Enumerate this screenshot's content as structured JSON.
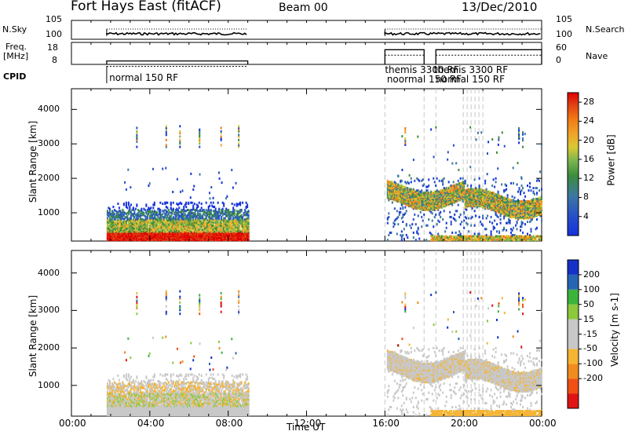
{
  "header": {
    "station": "Fort Hays East (fitACF)",
    "beam": "Beam 00",
    "date": "13/Dec/2010"
  },
  "strip_labels": {
    "nsky": "N.Sky",
    "freq_line1": "Freq.",
    "freq_line2": "[MHz]",
    "cpid": "CPID",
    "nsearch": "N.Search",
    "nave": "Nave"
  },
  "chart_data": [
    {
      "type": "line",
      "name_left": "N.Sky",
      "name_right": "N.Search",
      "yticks": [
        "10^5",
        "10^0"
      ],
      "x_range_hours": [
        0,
        24
      ],
      "segments_hours": [
        [
          1.8,
          9.0
        ],
        [
          16.0,
          24.0
        ]
      ]
    },
    {
      "type": "line",
      "ylabel": "Freq. [MHz]",
      "yticks_left": [
        8,
        18
      ],
      "yticks_right": [
        0,
        60
      ],
      "right_label": "Nave",
      "freq_segments": [
        {
          "x": [
            1.8,
            9.0
          ],
          "mhz": 10
        },
        {
          "x": [
            16.0,
            18.0
          ],
          "mhz": 16.5
        },
        {
          "x": [
            18.6,
            24.0
          ],
          "mhz": 16.5
        }
      ]
    },
    {
      "type": "annotation",
      "name": "CPID",
      "programs": [
        {
          "x": 1.85,
          "text": "normal 150 RF"
        },
        {
          "x": 16.0,
          "text": "themis 3300 RF"
        },
        {
          "x": 16.1,
          "text": "noormal 150 RF"
        },
        {
          "x": 18.5,
          "text": "themis 3300 RF"
        },
        {
          "x": 18.6,
          "text": "normal 150 RF"
        }
      ],
      "boundaries_hours": [
        1.8,
        16.0,
        18.0,
        18.6,
        20.0,
        20.2,
        20.4,
        20.6,
        20.8,
        21.0
      ]
    },
    {
      "type": "heatmap",
      "quantity": "Power",
      "ylabel": "Slant Range [km]",
      "yticks": [
        1000,
        2000,
        3000,
        4000
      ],
      "ylim": [
        180,
        4600
      ],
      "xlim_hours": [
        0,
        24
      ],
      "colorbar_label": "Power [dB]",
      "colorbar_ticks": [
        4,
        8,
        12,
        16,
        20,
        24,
        28
      ],
      "colorbar_range": [
        0,
        30
      ]
    },
    {
      "type": "heatmap",
      "quantity": "Velocity",
      "ylabel": "Slant Range [km]",
      "yticks": [
        1000,
        2000,
        3000,
        4000
      ],
      "ylim": [
        180,
        4600
      ],
      "xlabel": "Time UT",
      "xticks": [
        "00:00",
        "04:00",
        "08:00",
        "12:00",
        "16:00",
        "20:00",
        "00:00"
      ],
      "xtick_hours": [
        0,
        4,
        8,
        12,
        16,
        20,
        24
      ],
      "colorbar_label": "Velocity [m s-1]",
      "colorbar_ticks": [
        200,
        100,
        50,
        15,
        -15,
        -50,
        -100,
        -200
      ]
    }
  ],
  "colors": {
    "power_scale": [
      "#1432dc",
      "#2850c8",
      "#3c78a0",
      "#3c8c3c",
      "#78b450",
      "#dcc832",
      "#f0a028",
      "#f07814",
      "#e03c14",
      "#e00000"
    ],
    "velocity_scale": [
      "#e01414",
      "#f05014",
      "#f08c1e",
      "#f5b432",
      "#c8c8c8",
      "#c8c8c8",
      "#8cc83c",
      "#3cb43c",
      "#2864b4",
      "#1432c8"
    ]
  }
}
